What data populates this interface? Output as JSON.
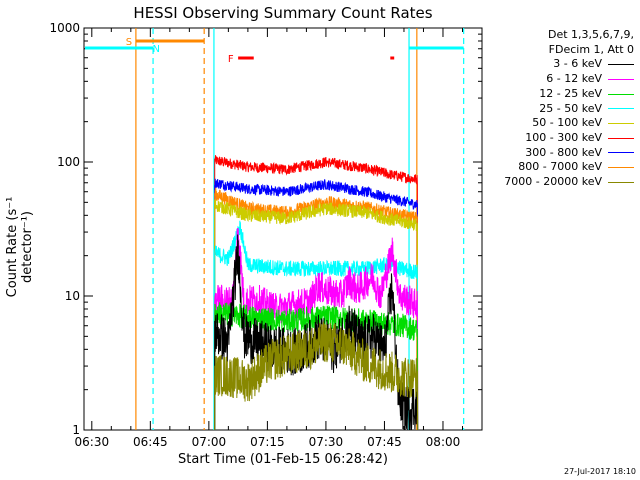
{
  "chart_data": {
    "type": "line",
    "title": "HESSI Observing Summary Count Rates",
    "xlabel": "Start Time (01-Feb-15 06:28:42)",
    "ylabel": "Count Rate (s⁻¹ detector⁻¹)",
    "yscale": "log",
    "ylim": [
      1,
      1000
    ],
    "yticks": [
      {
        "v": 1,
        "label": "1"
      },
      {
        "v": 10,
        "label": "10"
      },
      {
        "v": 100,
        "label": "100"
      },
      {
        "v": 1000,
        "label": "1000"
      }
    ],
    "xlim_min": [
      388,
      490
    ],
    "xticks": [
      {
        "m": 390,
        "label": "06:30"
      },
      {
        "m": 405,
        "label": "06:45"
      },
      {
        "m": 420,
        "label": "07:00"
      },
      {
        "m": 435,
        "label": "07:15"
      },
      {
        "m": 450,
        "label": "07:30"
      },
      {
        "m": 465,
        "label": "07:45"
      },
      {
        "m": 480,
        "label": "08:00"
      }
    ],
    "legend_header": [
      "Det 1,3,5,6,7,9,",
      "FDecim 1, Att 0"
    ],
    "legend": [
      {
        "label": "3 - 6 keV",
        "color": "#000000"
      },
      {
        "label": "6 - 12 keV",
        "color": "#ff00ff"
      },
      {
        "label": "12 - 25 keV",
        "color": "#00dd00"
      },
      {
        "label": "25 - 50 keV",
        "color": "#00ffff"
      },
      {
        "label": "50 - 100 keV",
        "color": "#cccc00"
      },
      {
        "label": "100 - 300 keV",
        "color": "#ff0000"
      },
      {
        "label": "300 - 800 keV",
        "color": "#0000ff"
      },
      {
        "label": "800 - 7000 keV",
        "color": "#ff8800"
      },
      {
        "label": "7000 - 20000 keV",
        "color": "#888800"
      }
    ],
    "series": [
      {
        "color": "#ff0000",
        "start": 421.5,
        "end": 473.5,
        "base": [
          [
            421.5,
            103
          ],
          [
            430,
            92
          ],
          [
            440,
            88
          ],
          [
            450,
            100
          ],
          [
            460,
            90
          ],
          [
            467,
            80
          ],
          [
            473.5,
            74
          ]
        ],
        "noise": 0.04
      },
      {
        "color": "#0000ff",
        "start": 421.5,
        "end": 473.5,
        "base": [
          [
            421.5,
            70
          ],
          [
            430,
            63
          ],
          [
            440,
            60
          ],
          [
            450,
            68
          ],
          [
            460,
            60
          ],
          [
            467,
            53
          ],
          [
            473.5,
            48
          ]
        ],
        "noise": 0.04
      },
      {
        "color": "#ff8800",
        "start": 421.5,
        "end": 473.5,
        "base": [
          [
            421.5,
            58
          ],
          [
            430,
            45
          ],
          [
            440,
            42
          ],
          [
            450,
            50
          ],
          [
            460,
            46
          ],
          [
            467,
            41
          ],
          [
            473.5,
            38
          ]
        ],
        "noise": 0.05
      },
      {
        "color": "#cccc00",
        "start": 421.5,
        "end": 473.5,
        "base": [
          [
            421.5,
            48
          ],
          [
            430,
            40
          ],
          [
            440,
            38
          ],
          [
            450,
            45
          ],
          [
            460,
            42
          ],
          [
            467,
            37
          ],
          [
            473.5,
            34
          ]
        ],
        "noise": 0.05
      },
      {
        "color": "#00ffff",
        "start": 421.5,
        "end": 473.5,
        "base": [
          [
            421.5,
            21
          ],
          [
            425,
            19
          ],
          [
            428,
            33
          ],
          [
            430,
            17
          ],
          [
            440,
            16
          ],
          [
            450,
            16
          ],
          [
            460,
            16
          ],
          [
            465,
            17
          ],
          [
            469,
            16
          ],
          [
            473.5,
            15
          ]
        ],
        "noise": 0.06
      },
      {
        "color": "#ff00ff",
        "start": 421.5,
        "end": 473.5,
        "base": [
          [
            421.5,
            9.5
          ],
          [
            426,
            9
          ],
          [
            427.5,
            32
          ],
          [
            429,
            9
          ],
          [
            432,
            9.5
          ],
          [
            437,
            8
          ],
          [
            442,
            8.5
          ],
          [
            446,
            9
          ],
          [
            448,
            12
          ],
          [
            450,
            11
          ],
          [
            454,
            10
          ],
          [
            456,
            13
          ],
          [
            458,
            11
          ],
          [
            462,
            14
          ],
          [
            464,
            10
          ],
          [
            467,
            22
          ],
          [
            469,
            10
          ],
          [
            473.5,
            8.5
          ]
        ],
        "noise": 0.12
      },
      {
        "color": "#00dd00",
        "start": 421.5,
        "end": 473.5,
        "base": [
          [
            421.5,
            7.5
          ],
          [
            430,
            7
          ],
          [
            440,
            6.5
          ],
          [
            450,
            7
          ],
          [
            460,
            6.5
          ],
          [
            470,
            6
          ],
          [
            473.5,
            5.5
          ]
        ],
        "noise": 0.09
      },
      {
        "color": "#000000",
        "start": 421.5,
        "end": 473.5,
        "base": [
          [
            421.5,
            5.5
          ],
          [
            425,
            4.5
          ],
          [
            427.5,
            22
          ],
          [
            429,
            5
          ],
          [
            432,
            4.5
          ],
          [
            437,
            4
          ],
          [
            443,
            3.8
          ],
          [
            448,
            5
          ],
          [
            452,
            4
          ],
          [
            456,
            6
          ],
          [
            459,
            4.5
          ],
          [
            462,
            5
          ],
          [
            465,
            4
          ],
          [
            467,
            12
          ],
          [
            468.5,
            2
          ],
          [
            470,
            1.4
          ],
          [
            472,
            1.5
          ],
          [
            473.5,
            1.5
          ]
        ],
        "noise": 0.18
      },
      {
        "color": "#888800",
        "start": 421.5,
        "end": 473.5,
        "base": [
          [
            421.5,
            2.6
          ],
          [
            426,
            2.5
          ],
          [
            430,
            2.3
          ],
          [
            436,
            3.3
          ],
          [
            440,
            3.6
          ],
          [
            445,
            4.0
          ],
          [
            450,
            4.6
          ],
          [
            455,
            4.2
          ],
          [
            460,
            3.2
          ],
          [
            465,
            2.8
          ],
          [
            470,
            2.5
          ],
          [
            473.5,
            2.5
          ]
        ],
        "noise": 0.16
      }
    ],
    "vlines": [
      {
        "m": 401.3,
        "color": "#ff8800",
        "dash": false
      },
      {
        "m": 418.8,
        "color": "#ff8800",
        "dash": true
      },
      {
        "m": 405.7,
        "color": "#00ffff",
        "dash": true
      },
      {
        "m": 421.3,
        "color": "#00ffff",
        "dash": false
      },
      {
        "m": 471.3,
        "color": "#00ffff",
        "dash": false
      },
      {
        "m": 485.3,
        "color": "#00ffff",
        "dash": true
      },
      {
        "m": 473.3,
        "color": "#ff8800",
        "dash": false
      }
    ],
    "bands": [
      {
        "label": "S",
        "color": "#ff8800",
        "from": 401.3,
        "to": 418.8,
        "level": "upper",
        "label_at": 399.5
      },
      {
        "label": "N",
        "color": "#00ffff",
        "from": 388,
        "to": 405.7,
        "level": "lower",
        "label_at": 406.5
      },
      {
        "label": "N",
        "color": "#00ffff",
        "from": 471.3,
        "to": 485.3,
        "level": "lower",
        "label_at": null
      },
      {
        "label": "F",
        "color": "#ff0000",
        "from": 427.5,
        "to": 431.5,
        "level": "flare",
        "label_at": 425.6
      },
      {
        "label": "",
        "color": "#ff0000",
        "from": 466.5,
        "to": 467.5,
        "level": "flare",
        "label_at": null
      }
    ]
  },
  "footer": {
    "timestamp": "27-Jul-2017 18:10"
  }
}
